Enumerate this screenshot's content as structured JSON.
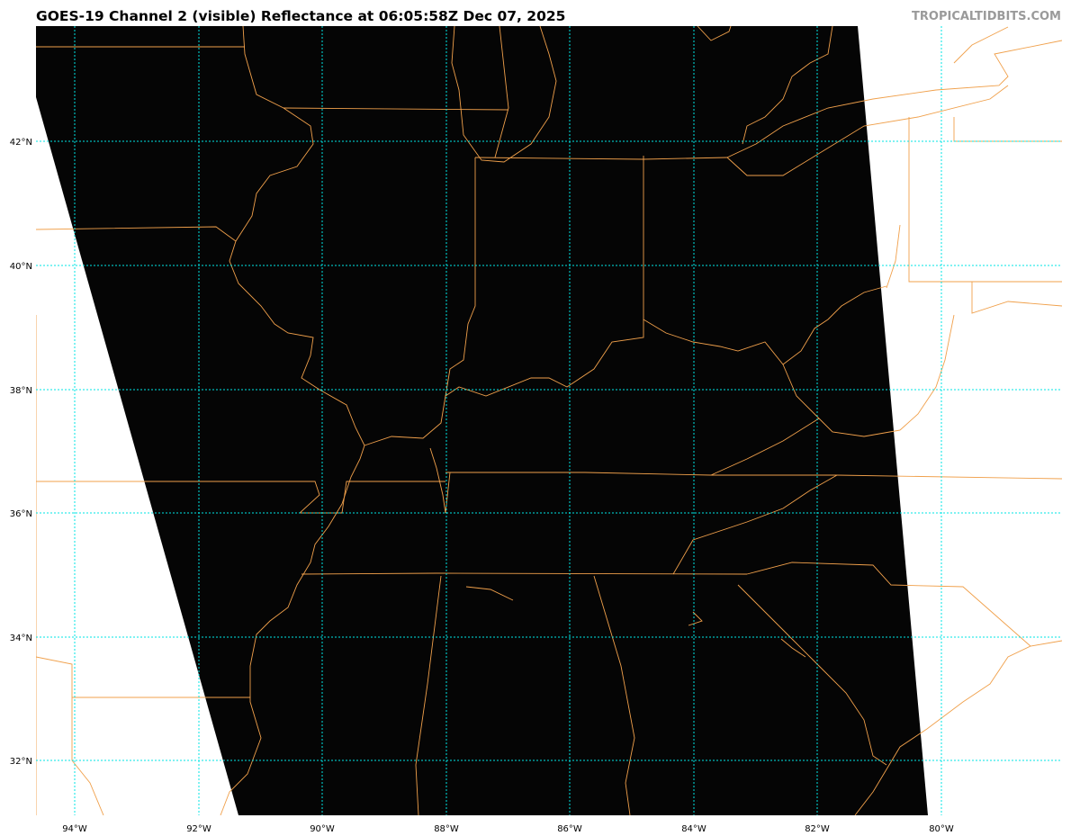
{
  "header": {
    "title": "GOES-19 Channel 2 (visible) Reflectance at 06:05:58Z Dec 07, 2025",
    "brand": "TROPICALTIDBITS.COM"
  },
  "map": {
    "longitude_labels": [
      "94°W",
      "92°W",
      "90°W",
      "88°W",
      "86°W",
      "84°W",
      "82°W",
      "80°W"
    ],
    "latitude_labels": [
      "42°N",
      "40°N",
      "38°N",
      "36°N",
      "34°N",
      "32°N"
    ],
    "colors": {
      "imagery": "#050505",
      "borders": "#f0a04b",
      "gridlines": "#00e5e5",
      "no_data": "#ffffff"
    }
  }
}
